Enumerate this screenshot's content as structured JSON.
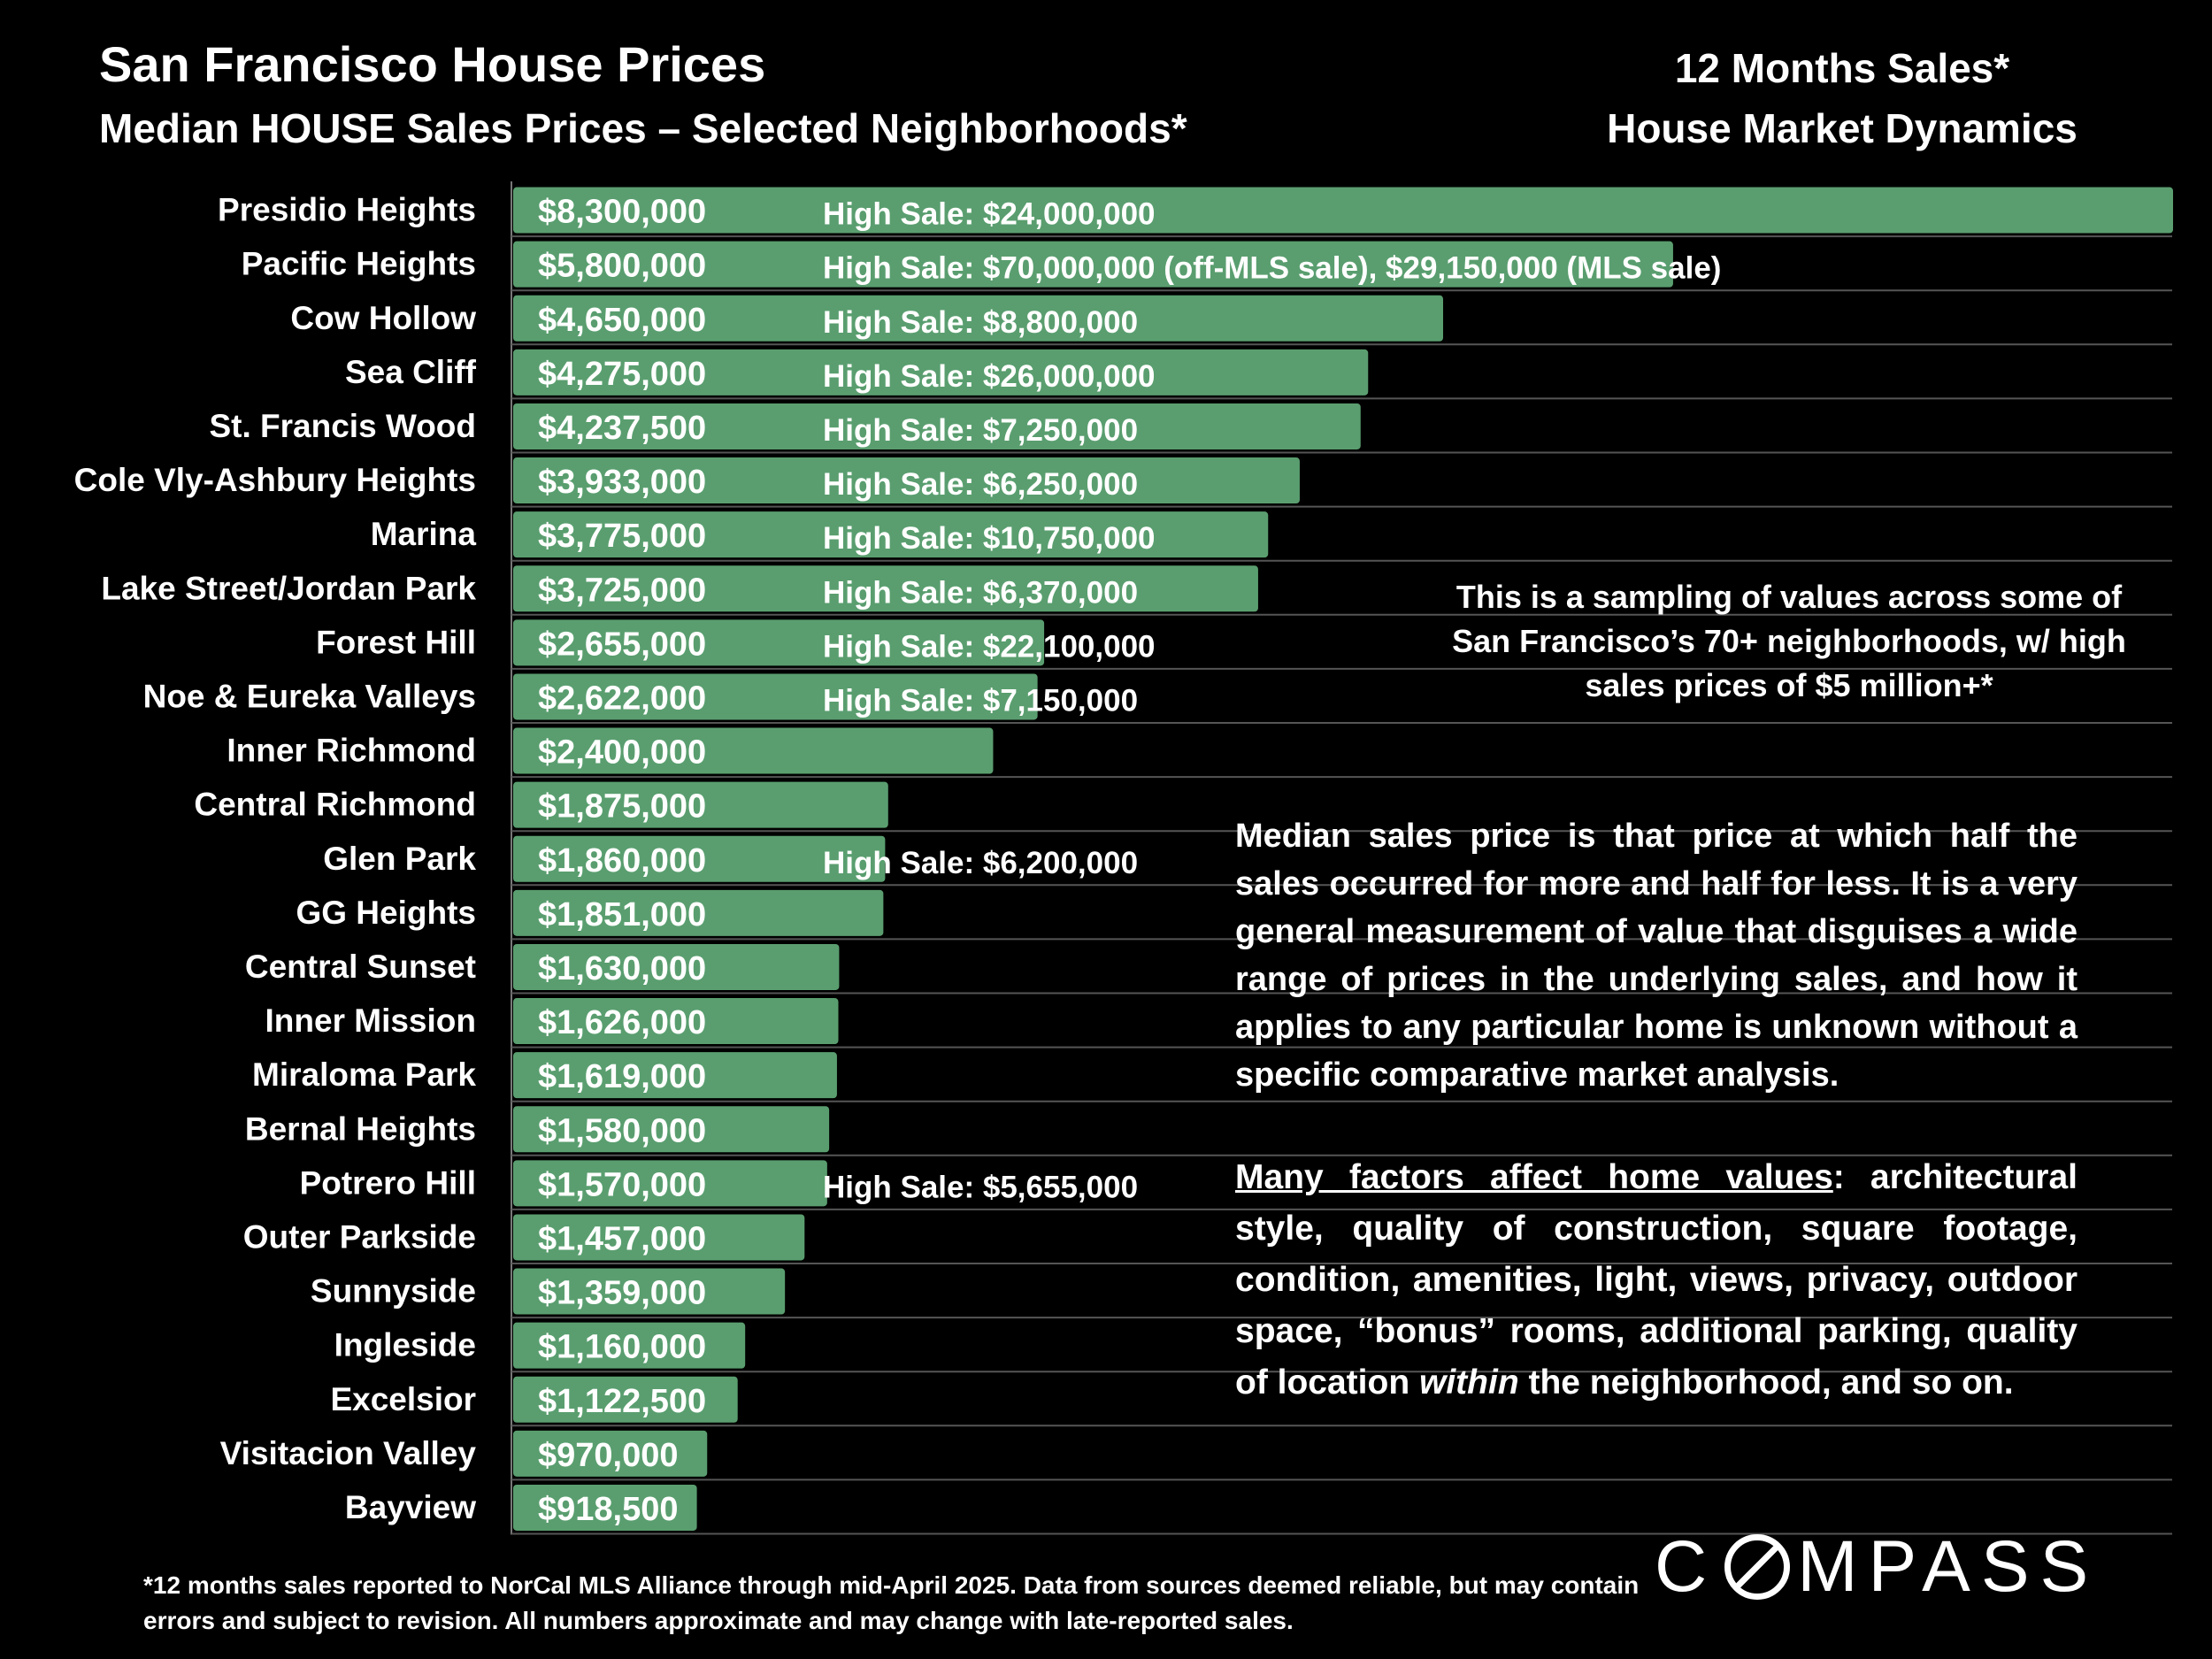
{
  "header": {
    "title": "San Francisco House Prices",
    "subtitle": "Median HOUSE Sales Prices – Selected Neighborhoods*",
    "right_line1": "12 Months Sales*",
    "right_line2": "House Market Dynamics"
  },
  "high_sale_prefix": "High Sale:",
  "chart_data": {
    "type": "bar",
    "orientation": "horizontal",
    "title": "Median HOUSE Sales Prices – Selected Neighborhoods*",
    "categories": [
      "Presidio Heights",
      "Pacific Heights",
      "Cow Hollow",
      "Sea Cliff",
      "St. Francis Wood",
      "Cole Vly-Ashbury Heights",
      "Marina",
      "Lake Street/Jordan Park",
      "Forest Hill",
      "Noe & Eureka Valleys",
      "Inner Richmond",
      "Central Richmond",
      "Glen Park",
      "GG Heights",
      "Central Sunset",
      "Inner Mission",
      "Miraloma Park",
      "Bernal Heights",
      "Potrero Hill",
      "Outer Parkside",
      "Sunnyside",
      "Ingleside",
      "Excelsior",
      "Visitacion Valley",
      "Bayview"
    ],
    "values": [
      8300000,
      5800000,
      4650000,
      4275000,
      4237500,
      3933000,
      3775000,
      3725000,
      2655000,
      2622000,
      2400000,
      1875000,
      1860000,
      1851000,
      1630000,
      1626000,
      1619000,
      1580000,
      1570000,
      1457000,
      1359000,
      1160000,
      1122500,
      970000,
      918500
    ],
    "value_labels": [
      "$8,300,000",
      "$5,800,000",
      "$4,650,000",
      "$4,275,000",
      "$4,237,500",
      "$3,933,000",
      "$3,775,000",
      "$3,725,000",
      "$2,655,000",
      "$2,622,000",
      "$2,400,000",
      "$1,875,000",
      "$1,860,000",
      "$1,851,000",
      "$1,630,000",
      "$1,626,000",
      "$1,619,000",
      "$1,580,000",
      "$1,570,000",
      "$1,457,000",
      "$1,359,000",
      "$1,160,000",
      "$1,122,500",
      "$970,000",
      "$918,500"
    ],
    "high_sales": [
      "$24,000,000",
      "$70,000,000 (off-MLS sale), $29,150,000 (MLS sale)",
      "$8,800,000",
      "$26,000,000",
      "$7,250,000",
      "$6,250,000",
      "$10,750,000",
      "$6,370,000",
      "$22,100,000",
      "$7,150,000",
      "",
      "",
      "$6,200,000",
      "",
      "",
      "",
      "",
      "",
      "$5,655,000",
      "",
      "",
      "",
      "",
      "",
      ""
    ],
    "bar_color": "#5a9e6f",
    "grid": true
  },
  "notes": {
    "sampling": "This is a sampling of values across some of San Francisco’s 70+ neighborhoods, w/ high sales prices of $5 million+*",
    "median": "Median sales price is that price at which half the sales occurred for more and half for less. It is a very general measurement of value that disguises a wide range of prices in the underlying sales, and how it applies to any particular home is unknown without a specific comparative market analysis.",
    "factors_heading": "Many factors affect home values",
    "factors_text_a": ": architectural style, quality of construction, square footage, condition, amenities, light, views, privacy, outdoor space, “bonus” rooms, additional parking, quality of location ",
    "factors_italic": "within",
    "factors_text_b": " the neighborhood, and so on."
  },
  "footnote": "*12 months sales reported to NorCal MLS Alliance through mid-April 2025. Data from sources deemed reliable, but may contain errors and subject to revision. All numbers approximate and may change with late-reported sales.",
  "logo": {
    "pre": "C",
    "post": "MPASS"
  }
}
